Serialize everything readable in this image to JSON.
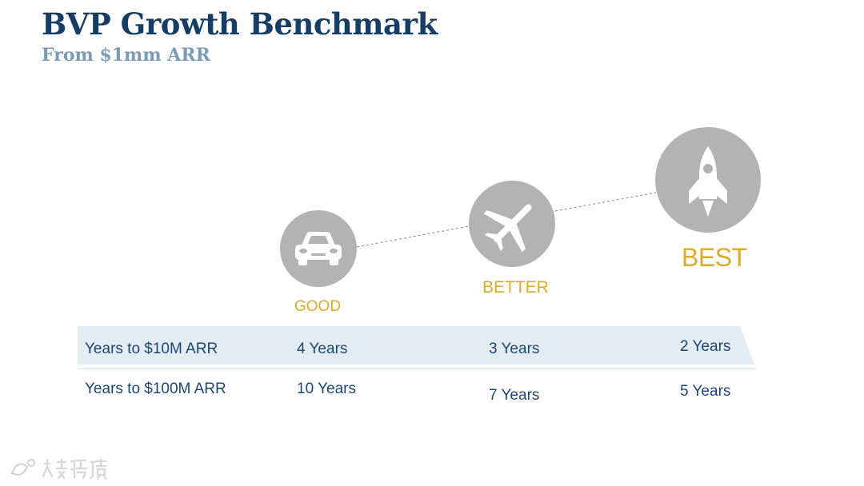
{
  "header": {
    "title": "BVP Growth Benchmark",
    "subtitle": "From $1mm ARR"
  },
  "tiers": [
    {
      "label": "GOOD",
      "icon": "car-icon"
    },
    {
      "label": "BETTER",
      "icon": "airplane-icon"
    },
    {
      "label": "BEST",
      "icon": "rocket-icon"
    }
  ],
  "table": {
    "rows": [
      {
        "label": "Years to $10M ARR",
        "good": "4 Years",
        "better": "3 Years",
        "best": "2 Years"
      },
      {
        "label": "Years to $100M ARR",
        "good": "10 Years",
        "better": "7 Years",
        "best": "5 Years"
      }
    ]
  },
  "colors": {
    "title": "#163d66",
    "subtitle": "#7a9bb6",
    "accent": "#dcab2a",
    "icon_circle": "#b3b3b3",
    "band": "#e3ebf3",
    "row_text": "#1e4670"
  }
}
